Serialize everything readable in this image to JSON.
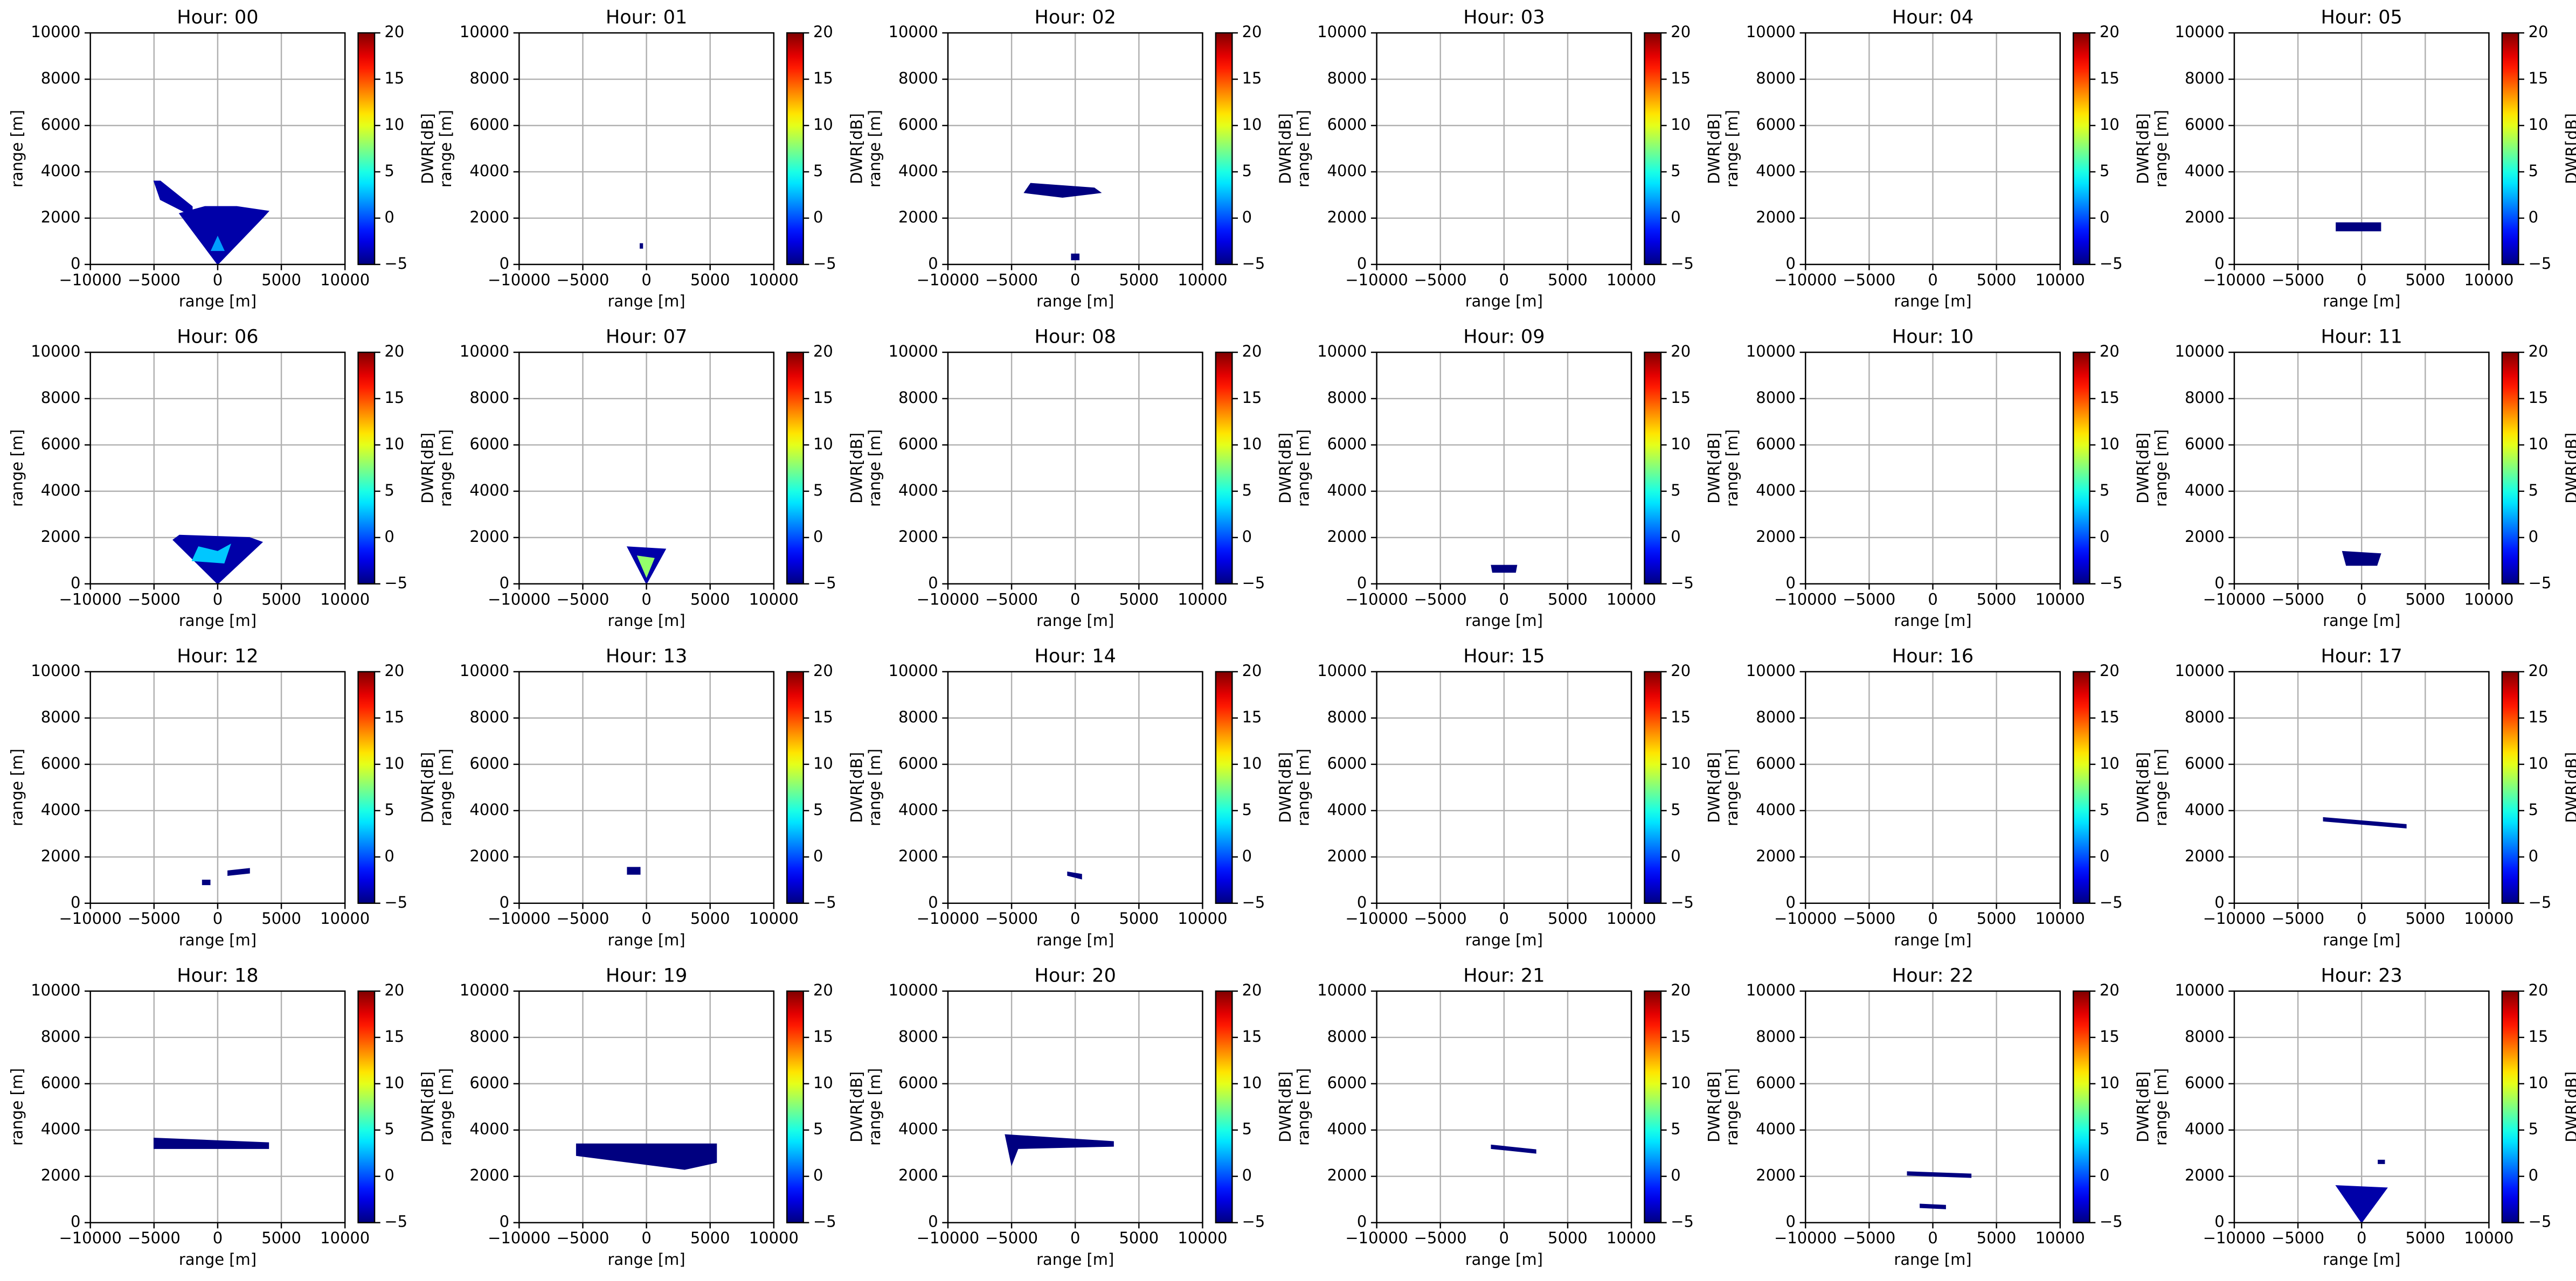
{
  "chart_data": {
    "type": "heatmap",
    "xlabel": "range [m]",
    "ylabel": "range [m]",
    "colorbar_label": "DWR[dB]",
    "colormap": "jet",
    "grid": true,
    "xlim": [
      -10000,
      10000
    ],
    "ylim": [
      0,
      10000
    ],
    "clim": [
      -5,
      20
    ],
    "xticks": [
      {
        "value": -10000,
        "label": "−10000"
      },
      {
        "value": -5000,
        "label": "−5000"
      },
      0,
      5000,
      10000
    ],
    "yticks": [
      0,
      2000,
      4000,
      6000,
      8000,
      10000
    ],
    "cticks": [
      {
        "value": -5,
        "label": "−5"
      },
      0,
      5,
      10,
      15,
      20
    ],
    "panels": [
      {
        "title": "Hour: 00",
        "regions": [
          {
            "x": [
              0,
              -3000,
              -1000,
              1500,
              4000,
              3500
            ],
            "y": [
              0,
              2200,
              2500,
              2500,
              2300,
              2000
            ],
            "value": -4
          },
          {
            "x": [
              -5000,
              -4500,
              -2000,
              -2000,
              -4500
            ],
            "y": [
              3600,
              3600,
              2500,
              2100,
              2800
            ],
            "value": -4
          },
          {
            "x": [
              -500,
              0,
              500
            ],
            "y": [
              600,
              1200,
              600
            ],
            "value": 2
          }
        ]
      },
      {
        "title": "Hour: 01",
        "regions": [
          {
            "x": [
              -500,
              -300,
              -300,
              -500
            ],
            "y": [
              700,
              700,
              900,
              900
            ],
            "value": -5
          }
        ]
      },
      {
        "title": "Hour: 02",
        "regions": [
          {
            "x": [
              -4000,
              -3500,
              1500,
              2000,
              -1000
            ],
            "y": [
              3100,
              3500,
              3300,
              3100,
              2900
            ],
            "value": -5
          },
          {
            "x": [
              -300,
              300,
              300,
              -300
            ],
            "y": [
              200,
              200,
              450,
              450
            ],
            "value": -5
          }
        ]
      },
      {
        "title": "Hour: 03",
        "regions": []
      },
      {
        "title": "Hour: 04",
        "regions": []
      },
      {
        "title": "Hour: 05",
        "regions": [
          {
            "x": [
              -2000,
              1500,
              1500,
              -2000
            ],
            "y": [
              1450,
              1450,
              1800,
              1800
            ],
            "value": -5
          }
        ]
      },
      {
        "title": "Hour: 06",
        "regions": [
          {
            "x": [
              0,
              -3500,
              -3000,
              2500,
              3500
            ],
            "y": [
              0,
              1900,
              2100,
              2000,
              1800
            ],
            "value": -4
          },
          {
            "x": [
              -2000,
              -1500,
              0,
              1000,
              500
            ],
            "y": [
              1000,
              1600,
              1400,
              1700,
              900
            ],
            "value": 3
          }
        ]
      },
      {
        "title": "Hour: 07",
        "regions": [
          {
            "x": [
              0,
              -1500,
              1500
            ],
            "y": [
              0,
              1600,
              1500
            ],
            "value": -4
          },
          {
            "x": [
              0,
              -700,
              600
            ],
            "y": [
              300,
              1200,
              1100
            ],
            "value": 8
          }
        ]
      },
      {
        "title": "Hour: 08",
        "regions": []
      },
      {
        "title": "Hour: 09",
        "regions": [
          {
            "x": [
              -1000,
              1000,
              900,
              -900
            ],
            "y": [
              800,
              800,
              500,
              500
            ],
            "value": -5
          }
        ]
      },
      {
        "title": "Hour: 10",
        "regions": []
      },
      {
        "title": "Hour: 11",
        "regions": [
          {
            "x": [
              -1500,
              1500,
              1200,
              -1200
            ],
            "y": [
              1400,
              1300,
              800,
              800
            ],
            "value": -5
          }
        ]
      },
      {
        "title": "Hour: 12",
        "regions": [
          {
            "x": [
              -1200,
              -600,
              -600,
              -1200
            ],
            "y": [
              800,
              800,
              1000,
              1000
            ],
            "value": -5
          },
          {
            "x": [
              800,
              2500,
              2500,
              800
            ],
            "y": [
              1200,
              1300,
              1500,
              1400
            ],
            "value": -5
          }
        ]
      },
      {
        "title": "Hour: 13",
        "regions": [
          {
            "x": [
              -1500,
              -500,
              -500,
              -1500
            ],
            "y": [
              1250,
              1250,
              1550,
              1550
            ],
            "value": -5
          }
        ]
      },
      {
        "title": "Hour: 14",
        "regions": [
          {
            "x": [
              -600,
              500,
              500,
              -600
            ],
            "y": [
              1200,
              1050,
              1250,
              1350
            ],
            "value": -5
          }
        ]
      },
      {
        "title": "Hour: 15",
        "regions": []
      },
      {
        "title": "Hour: 16",
        "regions": []
      },
      {
        "title": "Hour: 17",
        "regions": [
          {
            "x": [
              -3000,
              3500,
              3500,
              -3000
            ],
            "y": [
              3550,
              3250,
              3400,
              3700
            ],
            "value": -5
          }
        ]
      },
      {
        "title": "Hour: 18",
        "regions": [
          {
            "x": [
              -5000,
              4000,
              4000,
              -5000
            ],
            "y": [
              3200,
              3200,
              3450,
              3650
            ],
            "value": -5
          }
        ]
      },
      {
        "title": "Hour: 19",
        "regions": [
          {
            "x": [
              -5500,
              5500,
              5500,
              3000,
              -5500
            ],
            "y": [
              3400,
              3400,
              2600,
              2300,
              2900
            ],
            "value": -5
          }
        ]
      },
      {
        "title": "Hour: 20",
        "regions": [
          {
            "x": [
              -5500,
              3000,
              3000,
              -4500,
              -5000
            ],
            "y": [
              3800,
              3500,
              3300,
              3200,
              2500
            ],
            "value": -5
          }
        ]
      },
      {
        "title": "Hour: 21",
        "regions": [
          {
            "x": [
              -1000,
              2500,
              2500,
              -1000
            ],
            "y": [
              3350,
              3150,
              3000,
              3200
            ],
            "value": -5
          }
        ]
      },
      {
        "title": "Hour: 22",
        "regions": [
          {
            "x": [
              -2000,
              3000,
              3000,
              -2000
            ],
            "y": [
              2200,
              2100,
              1950,
              2050
            ],
            "value": -5
          },
          {
            "x": [
              -1000,
              1000,
              1000,
              -1000
            ],
            "y": [
              800,
              750,
              600,
              650
            ],
            "value": -5
          }
        ]
      },
      {
        "title": "Hour: 23",
        "regions": [
          {
            "x": [
              0,
              -2000,
              2000
            ],
            "y": [
              0,
              1600,
              1500
            ],
            "value": -4
          },
          {
            "x": [
              1300,
              1800,
              1800,
              1300
            ],
            "y": [
              2550,
              2550,
              2700,
              2700
            ],
            "value": -5
          }
        ]
      }
    ]
  }
}
